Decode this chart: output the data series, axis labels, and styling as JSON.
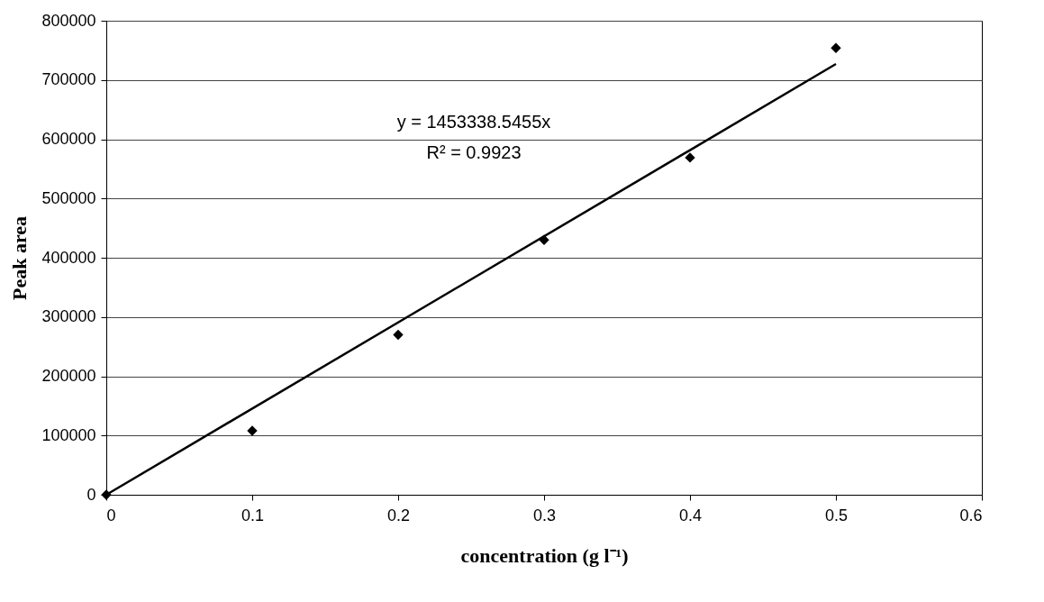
{
  "chart_data": {
    "type": "scatter",
    "xlabel": "concentration (g l⁻¹)",
    "ylabel": "Peak area",
    "x": [
      0,
      0.1,
      0.2,
      0.3,
      0.4,
      0.5
    ],
    "series": [
      {
        "color": "#000000",
        "marker": "diamond",
        "values": [
          0,
          108000,
          270000,
          430000,
          569000,
          754000
        ]
      },
      {
        "type": "line",
        "color": "#000000",
        "x": [
          0,
          0.5
        ],
        "values": [
          0,
          727000
        ]
      }
    ],
    "xlim": [
      0,
      0.6
    ],
    "xticks": [
      0,
      0.1,
      0.2,
      0.3,
      0.4,
      0.5,
      0.6
    ],
    "ylim": [
      0,
      800000
    ],
    "yticks": [
      0,
      100000,
      200000,
      300000,
      400000,
      500000,
      600000,
      700000,
      800000
    ],
    "grid": "y",
    "annotations": [
      "y = 1453338.5455x",
      "R² = 0.9923"
    ]
  }
}
